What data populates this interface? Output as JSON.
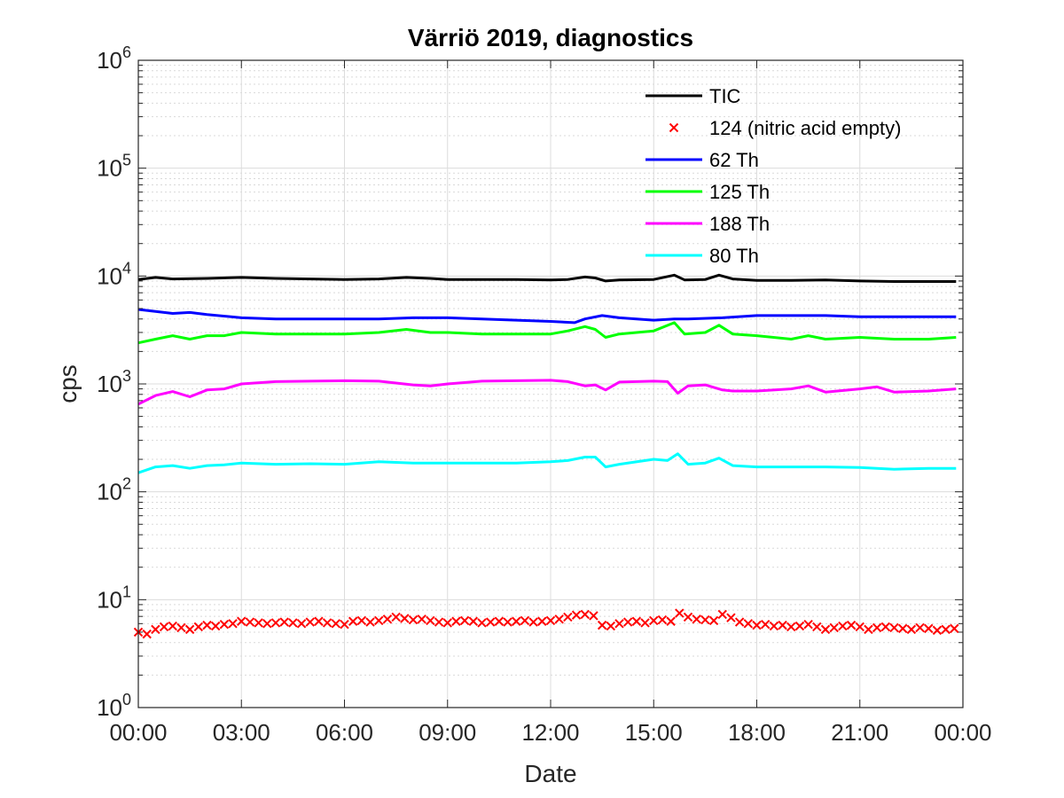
{
  "chart_data": {
    "type": "line",
    "title": "Värriö 2019, diagnostics",
    "xlabel": "Date",
    "ylabel": "cps",
    "yscale": "log",
    "ylim": [
      1,
      1000000
    ],
    "xlim": [
      0,
      24
    ],
    "grid": true,
    "legend_position": "top-right",
    "x_ticks": [
      0,
      3,
      6,
      9,
      12,
      15,
      18,
      21,
      24
    ],
    "x_tick_labels": [
      "00:00",
      "03:00",
      "06:00",
      "09:00",
      "12:00",
      "15:00",
      "18:00",
      "21:00",
      "00:00"
    ],
    "y_ticks": [
      {
        "base": "10",
        "exp": "0",
        "value": 1
      },
      {
        "base": "10",
        "exp": "1",
        "value": 10
      },
      {
        "base": "10",
        "exp": "2",
        "value": 100
      },
      {
        "base": "10",
        "exp": "3",
        "value": 1000
      },
      {
        "base": "10",
        "exp": "4",
        "value": 10000
      },
      {
        "base": "10",
        "exp": "5",
        "value": 100000
      },
      {
        "base": "10",
        "exp": "6",
        "value": 1000000
      }
    ],
    "series": [
      {
        "name": "TIC",
        "color": "#000000",
        "style": "line",
        "x": [
          0,
          0.5,
          1,
          2,
          3,
          4,
          5,
          6,
          7,
          7.8,
          8.5,
          9,
          10,
          11,
          12,
          12.5,
          13,
          13.3,
          13.6,
          14,
          15,
          15.6,
          15.9,
          16.5,
          16.9,
          17.3,
          18,
          19,
          20,
          21,
          22,
          23,
          23.8
        ],
        "y": [
          9300,
          9700,
          9400,
          9500,
          9700,
          9500,
          9400,
          9300,
          9400,
          9700,
          9500,
          9300,
          9300,
          9300,
          9200,
          9300,
          9800,
          9600,
          9000,
          9200,
          9300,
          10200,
          9200,
          9300,
          10200,
          9400,
          9100,
          9100,
          9200,
          9000,
          8900,
          8900,
          8900
        ]
      },
      {
        "name": "124 (nitric acid empty)",
        "color": "#ff0000",
        "style": "marker-x",
        "x": [
          0,
          0.25,
          0.5,
          0.75,
          1,
          1.25,
          1.5,
          1.75,
          2,
          2.25,
          2.5,
          2.75,
          3,
          3.25,
          3.5,
          3.75,
          4,
          4.25,
          4.5,
          4.75,
          5,
          5.25,
          5.5,
          5.75,
          6,
          6.25,
          6.5,
          6.75,
          7,
          7.25,
          7.5,
          7.75,
          8,
          8.25,
          8.5,
          8.75,
          9,
          9.25,
          9.5,
          9.75,
          10,
          10.25,
          10.5,
          10.75,
          11,
          11.25,
          11.5,
          11.75,
          12,
          12.25,
          12.5,
          12.75,
          13,
          13.25,
          13.5,
          13.75,
          14,
          14.25,
          14.5,
          14.75,
          15,
          15.25,
          15.5,
          15.75,
          16,
          16.25,
          16.5,
          16.75,
          17,
          17.25,
          17.5,
          17.75,
          18,
          18.25,
          18.5,
          18.75,
          19,
          19.25,
          19.5,
          19.75,
          20,
          20.25,
          20.5,
          20.75,
          21,
          21.25,
          21.5,
          21.75,
          22,
          22.25,
          22.5,
          22.75,
          23,
          23.25,
          23.5,
          23.75
        ],
        "y": [
          5.0,
          4.8,
          5.3,
          5.6,
          5.7,
          5.5,
          5.3,
          5.6,
          5.8,
          5.7,
          5.9,
          6.0,
          6.3,
          6.2,
          6.1,
          6.0,
          6.1,
          6.2,
          6.1,
          6.0,
          6.2,
          6.3,
          6.1,
          6.0,
          5.9,
          6.3,
          6.4,
          6.2,
          6.4,
          6.6,
          6.9,
          6.7,
          6.5,
          6.6,
          6.4,
          6.2,
          6.1,
          6.3,
          6.4,
          6.3,
          6.1,
          6.2,
          6.3,
          6.2,
          6.3,
          6.4,
          6.2,
          6.3,
          6.4,
          6.6,
          6.9,
          7.2,
          7.3,
          7.1,
          5.8,
          5.7,
          6.0,
          6.2,
          6.3,
          6.1,
          6.4,
          6.5,
          6.3,
          7.5,
          6.9,
          6.6,
          6.5,
          6.4,
          7.3,
          6.8,
          6.2,
          6.0,
          5.8,
          5.9,
          5.7,
          5.8,
          5.6,
          5.7,
          5.9,
          5.6,
          5.3,
          5.5,
          5.7,
          5.8,
          5.6,
          5.3,
          5.5,
          5.6,
          5.5,
          5.4,
          5.3,
          5.5,
          5.4,
          5.2,
          5.3,
          5.4
        ]
      },
      {
        "name": "62 Th",
        "color": "#0000ff",
        "style": "line",
        "x": [
          0,
          0.5,
          1,
          1.5,
          2,
          3,
          4,
          5,
          6,
          7,
          8,
          9,
          10,
          11,
          12,
          12.7,
          13,
          13.5,
          14,
          15,
          15.6,
          16,
          17,
          18,
          19,
          20,
          21,
          22,
          23,
          23.8
        ],
        "y": [
          4900,
          4700,
          4500,
          4600,
          4400,
          4100,
          4000,
          4000,
          4000,
          4000,
          4100,
          4100,
          4000,
          3900,
          3800,
          3700,
          4000,
          4300,
          4100,
          3900,
          4000,
          4000,
          4100,
          4300,
          4300,
          4300,
          4200,
          4200,
          4200,
          4200
        ]
      },
      {
        "name": "125 Th",
        "color": "#00ff00",
        "style": "line",
        "x": [
          0,
          0.5,
          1,
          1.5,
          2,
          2.5,
          3,
          4,
          5,
          6,
          7,
          7.8,
          8.5,
          9,
          10,
          11,
          12,
          12.5,
          13,
          13.3,
          13.6,
          14,
          15,
          15.6,
          15.9,
          16.5,
          16.9,
          17.3,
          18,
          19,
          19.5,
          20,
          21,
          22,
          23,
          23.8
        ],
        "y": [
          2400,
          2600,
          2800,
          2600,
          2800,
          2800,
          3000,
          2900,
          2900,
          2900,
          3000,
          3200,
          3000,
          3000,
          2900,
          2900,
          2900,
          3100,
          3400,
          3200,
          2700,
          2900,
          3100,
          3700,
          2900,
          3000,
          3500,
          2900,
          2800,
          2600,
          2800,
          2600,
          2700,
          2600,
          2600,
          2700
        ]
      },
      {
        "name": "188 Th",
        "color": "#ff00ff",
        "style": "line",
        "x": [
          0,
          0.5,
          1,
          1.5,
          2,
          2.5,
          3,
          4,
          5,
          6,
          7,
          8,
          8.5,
          9,
          10,
          11,
          12,
          12.5,
          13,
          13.3,
          13.6,
          14,
          15,
          15.4,
          15.7,
          16,
          16.5,
          17,
          17.3,
          18,
          19,
          19.5,
          20,
          21,
          21.5,
          22,
          23,
          23.8
        ],
        "y": [
          650,
          780,
          850,
          760,
          880,
          900,
          1000,
          1050,
          1060,
          1070,
          1060,
          980,
          960,
          1000,
          1060,
          1070,
          1080,
          1050,
          960,
          980,
          880,
          1040,
          1060,
          1050,
          820,
          960,
          980,
          880,
          860,
          860,
          900,
          960,
          840,
          900,
          940,
          840,
          860,
          900
        ]
      },
      {
        "name": "80 Th",
        "color": "#00ffff",
        "style": "line",
        "x": [
          0,
          0.5,
          1,
          1.5,
          2,
          2.5,
          3,
          4,
          5,
          6,
          7,
          8,
          9,
          10,
          11,
          12,
          12.5,
          13,
          13.3,
          13.6,
          14,
          15,
          15.4,
          15.7,
          16,
          16.5,
          16.9,
          17.3,
          18,
          19,
          20,
          21,
          22,
          23,
          23.8
        ],
        "y": [
          150,
          170,
          175,
          165,
          175,
          178,
          185,
          180,
          182,
          180,
          190,
          185,
          185,
          185,
          185,
          190,
          195,
          210,
          210,
          170,
          180,
          200,
          195,
          225,
          180,
          185,
          205,
          175,
          170,
          170,
          170,
          168,
          162,
          165,
          165
        ]
      }
    ]
  }
}
